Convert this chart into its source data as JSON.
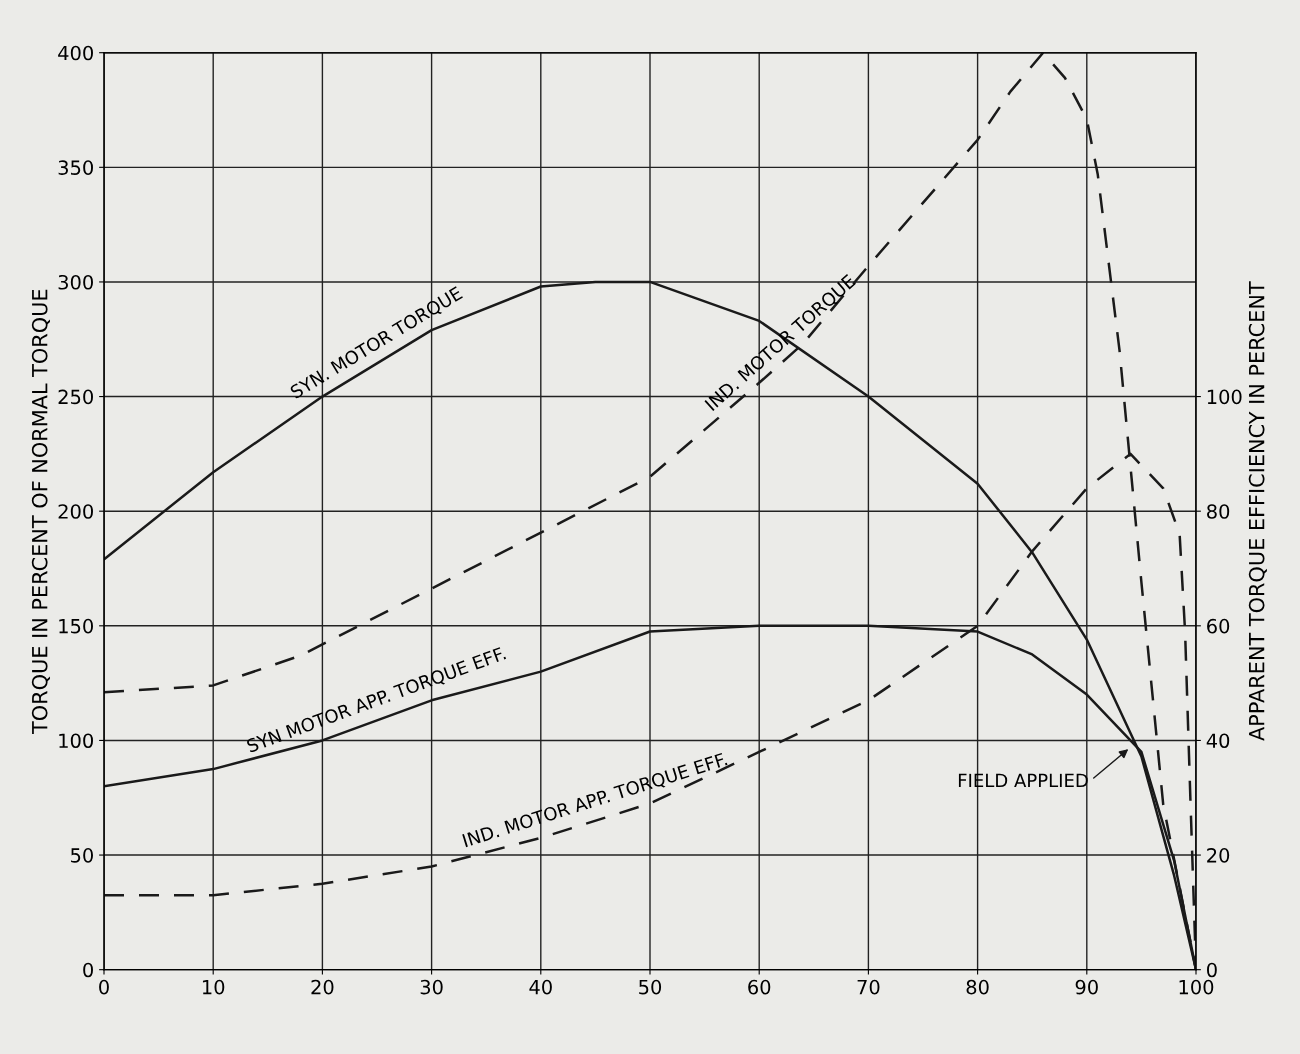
{
  "chart_data": {
    "type": "line",
    "ylabel": "TORQUE IN PERCENT OF NORMAL TORQUE",
    "y2label": "APPARENT TORQUE EFFICIENCY IN PERCENT",
    "xlim": [
      0,
      100
    ],
    "xticks": [
      0,
      10,
      20,
      30,
      40,
      50,
      60,
      70,
      80,
      90,
      100
    ],
    "ylim": [
      0,
      400
    ],
    "yticks": [
      0,
      50,
      100,
      150,
      200,
      250,
      300,
      350,
      400
    ],
    "y2lim": [
      0,
      160
    ],
    "y2ticks": [
      0,
      20,
      40,
      60,
      80,
      100
    ],
    "grid": true,
    "marker": "none",
    "series": [
      {
        "name": "SYN. MOTOR TORQUE",
        "color": "#1a1a1a",
        "line_style": "solid",
        "x": [
          0,
          10,
          20,
          30,
          40,
          45,
          50,
          60,
          70,
          80,
          85,
          90,
          95,
          98,
          100
        ],
        "values": [
          179,
          217,
          250,
          279,
          298,
          300,
          300,
          283,
          250,
          212,
          182,
          144,
          93,
          41,
          0
        ]
      },
      {
        "name": "IND. MOTOR TORQUE",
        "color": "#1a1a1a",
        "line_style": "dashed",
        "x": [
          0,
          10,
          18,
          50,
          60,
          64,
          70,
          80,
          83,
          86,
          88,
          90,
          91,
          93,
          95,
          97,
          100
        ],
        "values": [
          121,
          124,
          137,
          215,
          256,
          273,
          307,
          362,
          383,
          400,
          389,
          371,
          347,
          270,
          169,
          72,
          0
        ]
      },
      {
        "name": "SYN MOTOR APP. TORQUE EFF.",
        "color": "#1a1a1a",
        "line_style": "solid",
        "axis": "y2",
        "x": [
          0,
          10,
          20,
          30,
          40,
          50,
          60,
          70,
          80,
          85,
          90,
          95,
          98,
          100
        ],
        "values": [
          32,
          35,
          40,
          47,
          52,
          59,
          60,
          60,
          59,
          55,
          48,
          38,
          19,
          0
        ]
      },
      {
        "name": "IND. MOTOR APP. TORQUE EFF.",
        "color": "#1a1a1a",
        "line_style": "dashed",
        "axis": "y2",
        "x": [
          0,
          10,
          20,
          30,
          40,
          50,
          60,
          70,
          80,
          85,
          90,
          94,
          97,
          98.5,
          99,
          99.5,
          100
        ],
        "values": [
          13,
          13,
          15,
          18,
          23,
          29,
          38,
          47,
          60,
          73,
          84,
          90,
          84,
          76,
          59,
          29,
          0
        ]
      }
    ],
    "annotations": [
      {
        "text": "FIELD APPLIED",
        "x": 94,
        "y": 97
      }
    ]
  }
}
